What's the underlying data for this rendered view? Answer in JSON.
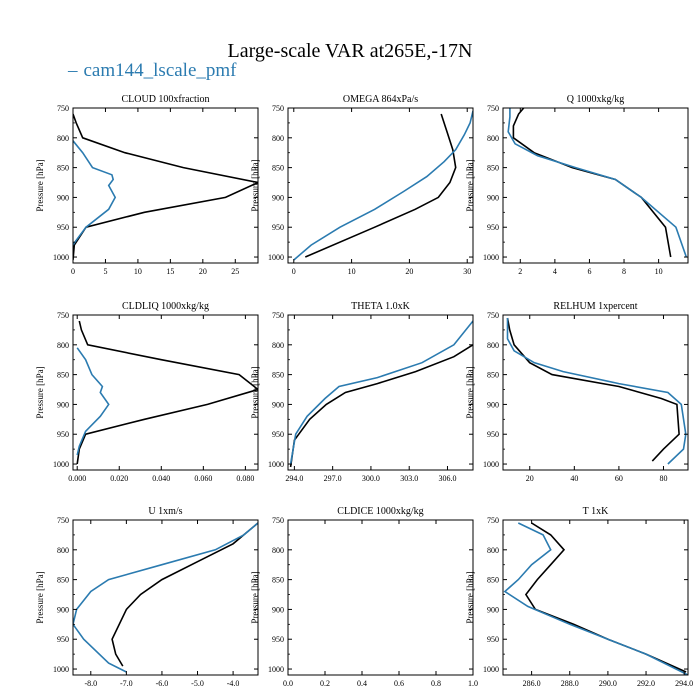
{
  "title": "Large-scale VAR at265E,-17N",
  "legend": {
    "dash": "–",
    "label": "cam144_lscale_pmf"
  },
  "colors": {
    "model": "#2b7bb0",
    "obs": "#000000"
  },
  "chart_data": [
    {
      "type": "line",
      "title": "CLOUD  100xfraction",
      "ylabel": "Pressure [hPa]",
      "ylim": [
        1010,
        750
      ],
      "yticks": [
        750,
        800,
        850,
        900,
        950,
        1000
      ],
      "xlim": [
        0,
        28.5
      ],
      "xticks": [
        0,
        5,
        10,
        15,
        20,
        25
      ],
      "xtick_labels": [
        "0",
        "5",
        "10",
        "15",
        "20",
        "25"
      ],
      "series": [
        {
          "color": "black",
          "points": [
            [
              0,
              760
            ],
            [
              0.5,
              775
            ],
            [
              1.5,
              800
            ],
            [
              8,
              825
            ],
            [
              17,
              850
            ],
            [
              28.5,
              875
            ],
            [
              23.5,
              900
            ],
            [
              11,
              925
            ],
            [
              2,
              950
            ],
            [
              0.2,
              980
            ],
            [
              0,
              1005
            ]
          ]
        },
        {
          "color": "blue",
          "points": [
            [
              0,
              805
            ],
            [
              1.5,
              825
            ],
            [
              3,
              850
            ],
            [
              6,
              862
            ],
            [
              6.2,
              870
            ],
            [
              5.5,
              880
            ],
            [
              6.5,
              900
            ],
            [
              5.5,
              920
            ],
            [
              2,
              950
            ],
            [
              0.3,
              975
            ],
            [
              0,
              980
            ]
          ]
        }
      ]
    },
    {
      "type": "line",
      "title": "OMEGA  864xPa/s",
      "ylabel": "Pressure [hPa]",
      "ylim": [
        1010,
        750
      ],
      "yticks": [
        750,
        800,
        850,
        900,
        950,
        1000
      ],
      "xlim": [
        -1,
        31
      ],
      "xticks": [
        0,
        10,
        20,
        30
      ],
      "xtick_labels": [
        "0",
        "10",
        "20",
        "30"
      ],
      "series": [
        {
          "color": "black",
          "points": [
            [
              2,
              1000
            ],
            [
              14,
              950
            ],
            [
              21,
              920
            ],
            [
              25,
              900
            ],
            [
              27,
              875
            ],
            [
              28,
              850
            ],
            [
              27.5,
              820
            ],
            [
              26.5,
              790
            ],
            [
              25.5,
              760
            ]
          ]
        },
        {
          "color": "blue",
          "points": [
            [
              0,
              1005
            ],
            [
              3,
              980
            ],
            [
              8,
              950
            ],
            [
              14,
              920
            ],
            [
              19,
              890
            ],
            [
              23,
              865
            ],
            [
              26,
              840
            ],
            [
              28,
              820
            ],
            [
              29.5,
              795
            ],
            [
              30.5,
              775
            ],
            [
              31,
              755
            ]
          ]
        }
      ]
    },
    {
      "type": "line",
      "title": "Q  1000xkg/kg",
      "ylabel": "Pressure [hPa]",
      "ylim": [
        1010,
        750
      ],
      "yticks": [
        750,
        800,
        850,
        900,
        950,
        1000
      ],
      "xlim": [
        1,
        11.7
      ],
      "xticks": [
        2,
        4,
        6,
        8,
        10
      ],
      "xtick_labels": [
        "2",
        "4",
        "6",
        "8",
        "10"
      ],
      "series": [
        {
          "color": "black",
          "points": [
            [
              10.7,
              1000
            ],
            [
              10.4,
              950
            ],
            [
              9,
              900
            ],
            [
              7.5,
              870
            ],
            [
              5,
              850
            ],
            [
              2.8,
              825
            ],
            [
              1.6,
              800
            ],
            [
              1.6,
              780
            ],
            [
              1.9,
              760
            ],
            [
              2.2,
              750
            ]
          ]
        },
        {
          "color": "blue",
          "points": [
            [
              11.6,
              1000
            ],
            [
              11,
              950
            ],
            [
              9,
              900
            ],
            [
              7.5,
              870
            ],
            [
              5.2,
              850
            ],
            [
              3,
              830
            ],
            [
              1.7,
              810
            ],
            [
              1.3,
              790
            ],
            [
              1.4,
              765
            ],
            [
              1.4,
              750
            ]
          ]
        }
      ]
    },
    {
      "type": "line",
      "title": "CLDLIQ  1000xkg/kg",
      "ylabel": "Pressure [hPa]",
      "ylim": [
        1010,
        750
      ],
      "yticks": [
        750,
        800,
        850,
        900,
        950,
        1000
      ],
      "xlim": [
        -0.002,
        0.086
      ],
      "xticks": [
        0.0,
        0.02,
        0.04,
        0.06,
        0.08
      ],
      "xtick_labels": [
        "0.000",
        "0.020",
        "0.040",
        "0.060",
        "0.080"
      ],
      "series": [
        {
          "color": "black",
          "points": [
            [
              0.001,
              760
            ],
            [
              0.002,
              775
            ],
            [
              0.005,
              800
            ],
            [
              0.04,
              825
            ],
            [
              0.077,
              850
            ],
            [
              0.086,
              875
            ],
            [
              0.062,
              900
            ],
            [
              0.032,
              925
            ],
            [
              0.004,
              950
            ],
            [
              0.001,
              975
            ],
            [
              0,
              1000
            ]
          ]
        },
        {
          "color": "blue",
          "points": [
            [
              0,
              805
            ],
            [
              0.004,
              825
            ],
            [
              0.007,
              850
            ],
            [
              0.012,
              870
            ],
            [
              0.011,
              880
            ],
            [
              0.015,
              900
            ],
            [
              0.011,
              920
            ],
            [
              0.004,
              945
            ],
            [
              0.001,
              970
            ],
            [
              0,
              985
            ]
          ]
        }
      ]
    },
    {
      "type": "line",
      "title": "THETA  1.0xK",
      "ylabel": "Pressure [hPa]",
      "ylim": [
        1010,
        750
      ],
      "yticks": [
        750,
        800,
        850,
        900,
        950,
        1000
      ],
      "xlim": [
        293.5,
        308
      ],
      "xticks": [
        294.0,
        297.0,
        300.0,
        303.0,
        306.0
      ],
      "xtick_labels": [
        "294.0",
        "297.0",
        "300.0",
        "303.0",
        "306.0"
      ],
      "series": [
        {
          "color": "black",
          "points": [
            [
              293.7,
              1005
            ],
            [
              294,
              960
            ],
            [
              295.2,
              925
            ],
            [
              296.5,
              900
            ],
            [
              298,
              880
            ],
            [
              300.5,
              865
            ],
            [
              303.5,
              845
            ],
            [
              306.5,
              820
            ],
            [
              308,
              800
            ],
            [
              309,
              780
            ]
          ]
        },
        {
          "color": "blue",
          "points": [
            [
              293.7,
              1000
            ],
            [
              294.1,
              950
            ],
            [
              295,
              920
            ],
            [
              296.4,
              890
            ],
            [
              297.5,
              870
            ],
            [
              300.5,
              855
            ],
            [
              304,
              830
            ],
            [
              306.5,
              800
            ],
            [
              308,
              760
            ]
          ]
        }
      ]
    },
    {
      "type": "line",
      "title": "RELHUM  1xpercent",
      "ylabel": "Pressure [hPa]",
      "ylim": [
        1010,
        750
      ],
      "yticks": [
        750,
        800,
        850,
        900,
        950,
        1000
      ],
      "xlim": [
        8,
        91
      ],
      "xticks": [
        20,
        40,
        60,
        80
      ],
      "xtick_labels": [
        "20",
        "40",
        "60",
        "80"
      ],
      "series": [
        {
          "color": "black",
          "points": [
            [
              75,
              995
            ],
            [
              80,
              975
            ],
            [
              87,
              950
            ],
            [
              86,
              900
            ],
            [
              79,
              890
            ],
            [
              60,
              870
            ],
            [
              30,
              850
            ],
            [
              20,
              830
            ],
            [
              13,
              800
            ],
            [
              11,
              775
            ],
            [
              10,
              755
            ]
          ]
        },
        {
          "color": "blue",
          "points": [
            [
              82,
              1000
            ],
            [
              89,
              975
            ],
            [
              90,
              950
            ],
            [
              88,
              900
            ],
            [
              82,
              880
            ],
            [
              60,
              865
            ],
            [
              35,
              845
            ],
            [
              22,
              830
            ],
            [
              13,
              810
            ],
            [
              10,
              790
            ],
            [
              10,
              755
            ]
          ]
        }
      ]
    },
    {
      "type": "line",
      "title": "U  1xm/s",
      "ylabel": "Pressure [hPa]",
      "ylim": [
        1010,
        750
      ],
      "yticks": [
        750,
        800,
        850,
        900,
        950,
        1000
      ],
      "xlim": [
        -8.5,
        -3.3
      ],
      "xticks": [
        -8.0,
        -7.0,
        -6.0,
        -5.0,
        -4.0
      ],
      "xtick_labels": [
        "-8.0",
        "-7.0",
        "-6.0",
        "-5.0",
        "-4.0"
      ],
      "series": [
        {
          "color": "black",
          "points": [
            [
              -7.1,
              995
            ],
            [
              -7.3,
              975
            ],
            [
              -7.4,
              950
            ],
            [
              -7,
              900
            ],
            [
              -6.6,
              875
            ],
            [
              -6,
              850
            ],
            [
              -5,
              820
            ],
            [
              -4,
              790
            ],
            [
              -3.3,
              755
            ]
          ]
        },
        {
          "color": "blue",
          "points": [
            [
              -7,
              1005
            ],
            [
              -7.5,
              990
            ],
            [
              -8.2,
              950
            ],
            [
              -8.5,
              925
            ],
            [
              -8.4,
              900
            ],
            [
              -8,
              870
            ],
            [
              -7.5,
              850
            ],
            [
              -6,
              825
            ],
            [
              -4.5,
              800
            ],
            [
              -3.7,
              775
            ],
            [
              -3.3,
              755
            ]
          ]
        }
      ]
    },
    {
      "type": "line",
      "title": "CLDICE  1000xkg/kg",
      "ylabel": "Pressure [hPa]",
      "ylim": [
        1010,
        750
      ],
      "yticks": [
        750,
        800,
        850,
        900,
        950,
        1000
      ],
      "xlim": [
        0,
        1.0
      ],
      "xticks": [
        0,
        0.2,
        0.4,
        0.6,
        0.8,
        1.0
      ],
      "xtick_labels": [
        "0.0",
        "0.2",
        "0.4",
        "0.6",
        "0.8",
        "1.0"
      ],
      "series": []
    },
    {
      "type": "line",
      "title": "T  1xK",
      "ylabel": "Pressure [hPa]",
      "ylim": [
        1010,
        750
      ],
      "yticks": [
        750,
        800,
        850,
        900,
        950,
        1000
      ],
      "xlim": [
        284.5,
        294.2
      ],
      "xticks": [
        286.0,
        288.0,
        290.0,
        292.0,
        294.0
      ],
      "xtick_labels": [
        "286.0",
        "288.0",
        "290.0",
        "292.0",
        "294.0"
      ],
      "series": [
        {
          "color": "black",
          "points": [
            [
              286,
              755
            ],
            [
              287,
              775
            ],
            [
              287.7,
              800
            ],
            [
              287,
              825
            ],
            [
              286.3,
              850
            ],
            [
              285.7,
              875
            ],
            [
              286.2,
              900
            ],
            [
              288.2,
              925
            ],
            [
              290,
              950
            ],
            [
              292,
              975
            ],
            [
              294.1,
              1005
            ]
          ]
        },
        {
          "color": "blue",
          "points": [
            [
              285.3,
              755
            ],
            [
              286.6,
              775
            ],
            [
              287,
              800
            ],
            [
              286,
              825
            ],
            [
              285.3,
              850
            ],
            [
              284.6,
              870
            ],
            [
              285.8,
              895
            ],
            [
              288,
              925
            ],
            [
              290,
              950
            ],
            [
              292,
              975
            ],
            [
              294.2,
              1010
            ]
          ]
        }
      ]
    }
  ]
}
